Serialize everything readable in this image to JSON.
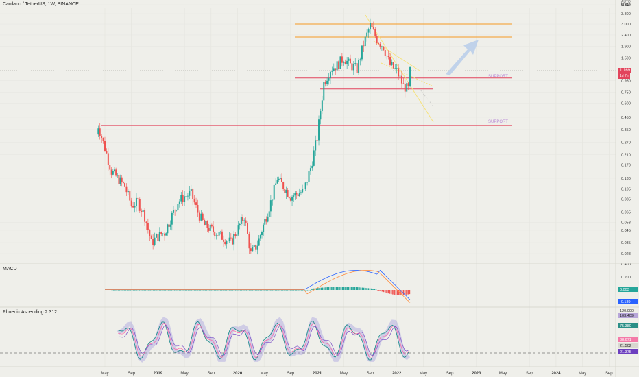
{
  "header": {
    "title": "Cardano / TetherUS, 1W, BINANCE"
  },
  "corner": {
    "auto": "AUTO",
    "currency": "USDT"
  },
  "panels": {
    "macd_label": "MACD",
    "phoenix_label": "Phoenix Ascending 2.312"
  },
  "annotations": {
    "support1": "SUPPORT",
    "support2": "SUPPORT"
  },
  "price_tag": {
    "value": "1.169",
    "sub": "1d 7h"
  },
  "colors": {
    "bg": "#efefea",
    "up": "#26a69a",
    "down": "#ef5350",
    "support": "#e2445c",
    "resistance": "#f59a23",
    "channel": "#f6e27a",
    "macd": "#2962ff",
    "signal": "#ff8c3b",
    "arrow": "#b7cdea"
  },
  "chart_data": [
    {
      "type": "candlestick",
      "title": "Cardano / TetherUS, 1W, BINANCE",
      "y_scale": "log",
      "y_ticks": [
        "5.800",
        "3.800",
        "3.000",
        "2.400",
        "1.900",
        "1.500",
        "1.169",
        "0.950",
        "0.750",
        "0.600",
        "0.450",
        "0.350",
        "0.270",
        "0.210",
        "0.170",
        "0.130",
        "0.105",
        "0.085",
        "0.065",
        "0.053",
        "0.045",
        "0.035",
        "0.028"
      ],
      "x_ticks": [
        "May",
        "Sep",
        "2019",
        "May",
        "Sep",
        "2020",
        "May",
        "Sep",
        "2021",
        "May",
        "Sep",
        "2022",
        "May",
        "Sep",
        "2023",
        "May",
        "Sep",
        "2024",
        "May",
        "Sep"
      ],
      "price_path": [
        [
          "2018-04",
          0.32
        ],
        [
          "2018-04",
          0.38
        ],
        [
          "2018-05",
          0.24
        ],
        [
          "2018-06",
          0.15
        ],
        [
          "2018-08",
          0.11
        ],
        [
          "2018-09",
          0.075
        ],
        [
          "2018-10",
          0.08
        ],
        [
          "2018-11",
          0.06
        ],
        [
          "2018-12",
          0.035
        ],
        [
          "2019-01",
          0.04
        ],
        [
          "2019-02",
          0.043
        ],
        [
          "2019-04",
          0.08
        ],
        [
          "2019-05",
          0.09
        ],
        [
          "2019-06",
          0.095
        ],
        [
          "2019-07",
          0.065
        ],
        [
          "2019-08",
          0.05
        ],
        [
          "2019-10",
          0.042
        ],
        [
          "2019-12",
          0.035
        ],
        [
          "2020-02",
          0.06
        ],
        [
          "2020-03",
          0.028
        ],
        [
          "2020-04",
          0.034
        ],
        [
          "2020-06",
          0.08
        ],
        [
          "2020-07",
          0.13
        ],
        [
          "2020-09",
          0.09
        ],
        [
          "2020-11",
          0.1
        ],
        [
          "2020-12",
          0.16
        ],
        [
          "2021-01",
          0.3
        ],
        [
          "2021-02",
          0.9
        ],
        [
          "2021-03",
          1.2
        ],
        [
          "2021-04",
          1.3
        ],
        [
          "2021-05",
          1.5
        ],
        [
          "2021-06",
          1.3
        ],
        [
          "2021-07",
          1.2
        ],
        [
          "2021-08",
          2.0
        ],
        [
          "2021-09",
          2.9
        ],
        [
          "2021-10",
          2.2
        ],
        [
          "2021-11",
          1.9
        ],
        [
          "2021-12",
          1.3
        ],
        [
          "2022-01",
          1.15
        ],
        [
          "2022-02",
          0.85
        ],
        [
          "2022-03",
          0.78
        ],
        [
          "2022-03",
          1.169
        ]
      ],
      "lines": [
        {
          "name": "resistance",
          "value": 3.0
        },
        {
          "name": "resistance",
          "value": 2.3
        },
        {
          "name": "support",
          "value": 1.0,
          "label": "SUPPORT"
        },
        {
          "name": "support",
          "value": 0.8
        },
        {
          "name": "support",
          "value": 0.38,
          "label": "SUPPORT"
        }
      ],
      "last_price": 1.169
    },
    {
      "type": "line",
      "title": "MACD",
      "y_ticks": [
        "0.400",
        "0.200",
        "0.003",
        "-0.189"
      ],
      "values": {
        "histogram": 0.003,
        "signal": -0.189
      },
      "series": [
        {
          "x": [
            "2021-07",
            "2021-09",
            "2021-11",
            "2022-01",
            "2022-03"
          ],
          "values": [
            0.35,
            0.38,
            0.2,
            -0.05,
            -0.189
          ]
        },
        {
          "x": [
            "2021-07",
            "2021-09",
            "2021-11",
            "2022-01",
            "2022-03"
          ],
          "values": [
            0.3,
            0.33,
            0.25,
            0.05,
            -0.12
          ]
        }
      ]
    },
    {
      "type": "line",
      "title": "Phoenix Ascending 2.312",
      "y_ticks": [
        "120.000",
        "103.409",
        "75.380",
        "38.671",
        "21.502",
        "21.375"
      ],
      "values": {
        "v1": 103.409,
        "v2": 75.38,
        "v3": 38.671,
        "v4": 21.502,
        "v5": 21.375
      }
    }
  ]
}
